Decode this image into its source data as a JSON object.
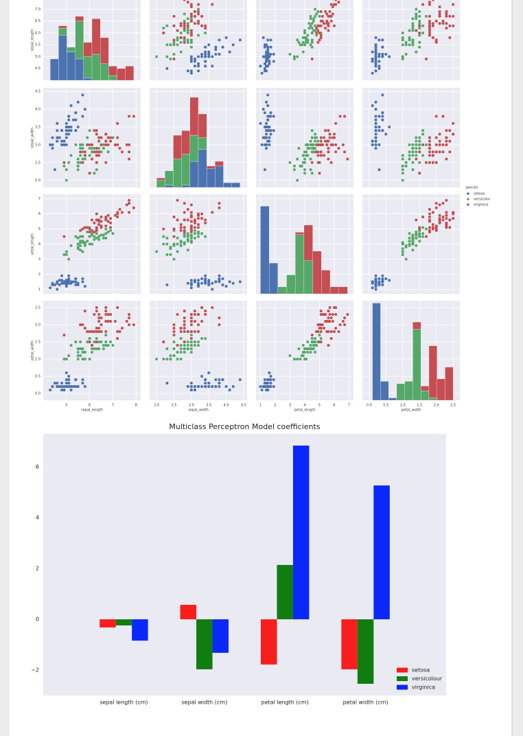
{
  "chart_data": [
    {
      "type": "pairplot",
      "legend_title": "species",
      "variables": [
        {
          "name": "sepal_length",
          "xlim": [
            4.0,
            8.2
          ],
          "xticks": [
            5,
            6,
            7,
            8
          ],
          "ylim": [
            4.0,
            8.2
          ],
          "yticks": [
            4.5,
            {
              "value": 5,
              "label": "5.0"
            },
            5.5,
            {
              "value": 6,
              "label": "6.0"
            },
            6.5,
            {
              "value": 7,
              "label": "7.0"
            }
          ],
          "bins": [
            4.3,
            4.66,
            5.02,
            5.38,
            5.74,
            6.1,
            6.46,
            6.82,
            7.18,
            7.54,
            7.9
          ],
          "hist_ylim": [
            0,
            42
          ]
        },
        {
          "name": "sepal_width",
          "xlim": [
            1.8,
            4.6
          ],
          "xticks": [
            {
              "value": 2,
              "label": "2.0"
            },
            2.5,
            {
              "value": 3,
              "label": "3.0"
            },
            3.5,
            {
              "value": 4,
              "label": "4.0"
            },
            4.5
          ],
          "ylim": [
            1.8,
            4.6
          ],
          "yticks": [
            {
              "value": 2,
              "label": "2.0"
            },
            2.5,
            {
              "value": 3,
              "label": "3.0"
            },
            3.5,
            {
              "value": 4,
              "label": "4.0"
            },
            4.5
          ],
          "bins": [
            2.0,
            2.24,
            2.48,
            2.72,
            2.96,
            3.2,
            3.44,
            3.68,
            3.92,
            4.16,
            4.4
          ],
          "hist_ylim": [
            0,
            42
          ]
        },
        {
          "name": "petal_length",
          "xlim": [
            0.7,
            7.3
          ],
          "xticks": [
            1,
            2,
            3,
            4,
            5,
            6,
            7
          ],
          "ylim": [
            0.7,
            7.3
          ],
          "yticks": [
            1,
            2,
            3,
            4,
            5,
            6,
            7
          ],
          "bins": [
            1.0,
            1.59,
            2.18,
            2.77,
            3.36,
            3.95,
            4.54,
            5.13,
            5.72,
            6.31,
            6.9
          ],
          "hist_ylim": [
            0,
            42
          ]
        },
        {
          "name": "petal_width",
          "xlim": [
            -0.2,
            2.7
          ],
          "xticks": [
            {
              "value": 0,
              "label": "0.0"
            },
            0.5,
            {
              "value": 1,
              "label": "1.0"
            },
            1.5,
            {
              "value": 2,
              "label": "2.0"
            },
            2.5
          ],
          "ylim": [
            -0.2,
            2.7
          ],
          "yticks": [
            {
              "value": 0,
              "label": "0.0"
            },
            0.5,
            {
              "value": 1,
              "label": "1.0"
            },
            1.5,
            {
              "value": 2,
              "label": "2.0"
            },
            2.5
          ],
          "bins": [
            0.1,
            0.34,
            0.58,
            0.82,
            1.06,
            1.3,
            1.54,
            1.78,
            2.02,
            2.26,
            2.5
          ],
          "hist_ylim": [
            0,
            42
          ]
        }
      ],
      "series": [
        {
          "name": "setosa",
          "color": "#4c72b0",
          "values": [
            [
              5.1,
              4.9,
              4.7,
              4.6,
              5.0,
              5.4,
              4.6,
              5.0,
              4.4,
              4.9,
              5.4,
              4.8,
              4.8,
              4.3,
              5.8,
              5.7,
              5.4,
              5.1,
              5.7,
              5.1,
              5.4,
              5.1,
              4.6,
              5.1,
              4.8,
              5.0,
              5.0,
              5.2,
              5.2,
              4.7,
              4.8,
              5.4,
              5.2,
              5.5,
              4.9,
              5.0,
              5.5,
              4.9,
              4.4,
              5.1,
              5.0,
              4.5,
              4.4,
              5.0,
              5.1,
              4.8,
              5.1,
              4.6,
              5.3,
              5.0
            ],
            [
              3.5,
              3.0,
              3.2,
              3.1,
              3.6,
              3.9,
              3.4,
              3.4,
              2.9,
              3.1,
              3.7,
              3.4,
              3.0,
              3.0,
              4.0,
              4.4,
              3.9,
              3.5,
              3.8,
              3.8,
              3.4,
              3.7,
              3.6,
              3.3,
              3.4,
              3.0,
              3.4,
              3.5,
              3.4,
              3.2,
              3.1,
              3.4,
              4.1,
              4.2,
              3.1,
              3.2,
              3.5,
              3.1,
              3.0,
              3.4,
              3.5,
              2.3,
              3.2,
              3.5,
              3.8,
              3.0,
              3.8,
              3.2,
              3.7,
              3.3
            ],
            [
              1.4,
              1.4,
              1.3,
              1.5,
              1.4,
              1.7,
              1.4,
              1.5,
              1.4,
              1.5,
              1.5,
              1.6,
              1.4,
              1.1,
              1.2,
              1.5,
              1.3,
              1.4,
              1.7,
              1.5,
              1.7,
              1.5,
              1.0,
              1.7,
              1.9,
              1.6,
              1.6,
              1.5,
              1.4,
              1.6,
              1.6,
              1.5,
              1.5,
              1.4,
              1.5,
              1.2,
              1.3,
              1.5,
              1.3,
              1.5,
              1.3,
              1.3,
              1.3,
              1.6,
              1.9,
              1.4,
              1.6,
              1.4,
              1.5,
              1.4
            ],
            [
              0.2,
              0.2,
              0.2,
              0.2,
              0.2,
              0.4,
              0.3,
              0.2,
              0.2,
              0.1,
              0.2,
              0.2,
              0.1,
              0.1,
              0.2,
              0.4,
              0.4,
              0.3,
              0.3,
              0.3,
              0.2,
              0.4,
              0.2,
              0.5,
              0.2,
              0.2,
              0.4,
              0.2,
              0.2,
              0.2,
              0.2,
              0.4,
              0.1,
              0.2,
              0.1,
              0.2,
              0.2,
              0.1,
              0.2,
              0.2,
              0.3,
              0.3,
              0.2,
              0.6,
              0.4,
              0.3,
              0.2,
              0.2,
              0.2,
              0.2
            ]
          ],
          "counts": [
            [
              9,
              19,
              12,
              9,
              1,
              0,
              0,
              0,
              0,
              0
            ],
            [
              0,
              1,
              0,
              1,
              11,
              16,
              8,
              9,
              2,
              2
            ],
            [
              37,
              13,
              0,
              0,
              0,
              0,
              0,
              0,
              0,
              0
            ],
            [
              41,
              8,
              1,
              0,
              0,
              0,
              0,
              0,
              0,
              0
            ]
          ]
        },
        {
          "name": "versicolor",
          "color": "#55a868",
          "values": [
            [
              7.0,
              6.4,
              6.9,
              5.5,
              6.5,
              5.7,
              6.3,
              4.9,
              6.6,
              5.2,
              5.0,
              5.9,
              6.0,
              6.1,
              5.6,
              6.7,
              5.6,
              5.8,
              6.2,
              5.6,
              5.9,
              6.1,
              6.3,
              6.1,
              6.4,
              6.6,
              6.8,
              6.7,
              6.0,
              5.7,
              5.5,
              5.5,
              5.8,
              6.0,
              5.4,
              6.0,
              6.7,
              6.3,
              5.6,
              5.5,
              5.5,
              6.1,
              5.8,
              5.0,
              5.6,
              5.7,
              5.7,
              6.2,
              5.1,
              5.7
            ],
            [
              3.2,
              3.2,
              3.1,
              2.3,
              2.8,
              2.8,
              3.3,
              2.4,
              2.9,
              2.7,
              2.0,
              3.0,
              2.2,
              2.9,
              2.9,
              3.1,
              3.0,
              2.7,
              2.2,
              2.5,
              3.2,
              2.8,
              2.5,
              2.8,
              2.9,
              3.0,
              2.8,
              3.0,
              2.9,
              2.6,
              2.4,
              2.4,
              2.7,
              2.7,
              3.0,
              3.4,
              3.1,
              2.3,
              3.0,
              2.5,
              2.6,
              3.0,
              2.6,
              2.3,
              2.7,
              3.0,
              2.9,
              2.9,
              2.5,
              2.8
            ],
            [
              4.7,
              4.5,
              4.9,
              4.0,
              4.6,
              4.5,
              4.7,
              3.3,
              4.6,
              3.9,
              3.5,
              4.2,
              4.0,
              4.7,
              3.6,
              4.4,
              4.5,
              4.1,
              4.5,
              3.9,
              4.8,
              4.0,
              4.9,
              4.7,
              4.3,
              4.4,
              4.8,
              5.0,
              4.5,
              3.5,
              3.8,
              3.7,
              3.9,
              5.1,
              4.5,
              4.5,
              4.7,
              4.4,
              4.1,
              4.0,
              4.4,
              4.6,
              4.0,
              3.3,
              4.2,
              4.2,
              4.2,
              4.3,
              3.0,
              4.1
            ],
            [
              1.4,
              1.5,
              1.5,
              1.3,
              1.5,
              1.3,
              1.6,
              1.0,
              1.3,
              1.4,
              1.0,
              1.5,
              1.0,
              1.4,
              1.3,
              1.4,
              1.5,
              1.0,
              1.5,
              1.1,
              1.8,
              1.3,
              1.5,
              1.2,
              1.3,
              1.4,
              1.4,
              1.7,
              1.5,
              1.0,
              1.1,
              1.0,
              1.2,
              1.6,
              1.5,
              1.6,
              1.5,
              1.3,
              1.3,
              1.3,
              1.2,
              1.4,
              1.2,
              1.0,
              1.3,
              1.2,
              1.3,
              1.3,
              1.1,
              1.3
            ]
          ],
          "counts": [
            [
              0,
              3,
              2,
              16,
              9,
              11,
              7,
              2,
              0,
              0
            ],
            [
              3,
              6,
              12,
              13,
              11,
              5,
              0,
              0,
              0,
              0
            ],
            [
              0,
              0,
              3,
              8,
              25,
              14,
              0,
              0,
              0,
              0
            ],
            [
              0,
              0,
              0,
              7,
              8,
              30,
              4,
              1,
              0,
              0
            ]
          ]
        },
        {
          "name": "virginica",
          "color": "#c44e52",
          "values": [
            [
              6.3,
              5.8,
              7.1,
              6.3,
              6.5,
              7.6,
              4.9,
              7.3,
              6.7,
              7.2,
              6.5,
              6.4,
              6.8,
              5.7,
              5.8,
              6.4,
              6.5,
              7.7,
              7.7,
              6.0,
              6.9,
              5.6,
              7.7,
              6.3,
              6.7,
              7.2,
              6.2,
              6.1,
              6.4,
              7.2,
              7.4,
              7.9,
              6.4,
              6.3,
              6.1,
              7.7,
              6.3,
              6.4,
              6.0,
              6.9,
              6.7,
              6.9,
              5.8,
              6.8,
              6.7,
              6.7,
              6.3,
              6.5,
              6.2,
              5.9
            ],
            [
              3.3,
              2.7,
              3.0,
              2.9,
              3.0,
              3.0,
              2.5,
              2.9,
              2.5,
              3.6,
              3.2,
              2.7,
              3.0,
              2.5,
              2.8,
              3.2,
              3.0,
              3.8,
              2.6,
              2.2,
              3.2,
              2.8,
              2.8,
              2.7,
              3.3,
              3.2,
              2.8,
              3.0,
              2.8,
              3.0,
              2.8,
              3.8,
              2.8,
              2.8,
              2.6,
              3.0,
              3.4,
              3.1,
              3.0,
              3.1,
              3.1,
              3.1,
              2.7,
              3.2,
              3.3,
              3.0,
              2.5,
              3.0,
              3.4,
              3.0
            ],
            [
              6.0,
              5.1,
              5.9,
              5.6,
              5.8,
              6.6,
              4.5,
              6.3,
              5.8,
              6.1,
              5.1,
              5.3,
              5.5,
              5.0,
              5.1,
              5.3,
              5.5,
              6.7,
              6.9,
              5.0,
              5.7,
              4.9,
              6.7,
              4.9,
              5.7,
              6.0,
              4.8,
              4.9,
              5.6,
              5.8,
              6.1,
              6.4,
              5.6,
              5.1,
              5.6,
              6.1,
              5.6,
              5.5,
              4.8,
              5.4,
              5.6,
              5.1,
              5.1,
              5.9,
              5.7,
              5.2,
              5.0,
              5.2,
              5.4,
              5.1
            ],
            [
              2.5,
              1.9,
              2.1,
              1.8,
              2.2,
              2.1,
              1.7,
              1.8,
              1.8,
              2.5,
              2.0,
              1.9,
              2.1,
              2.0,
              2.4,
              2.3,
              1.8,
              2.2,
              2.3,
              1.5,
              2.3,
              2.0,
              2.0,
              1.8,
              2.1,
              1.8,
              1.8,
              1.8,
              2.1,
              1.6,
              1.9,
              2.0,
              2.2,
              1.5,
              1.4,
              2.3,
              2.4,
              1.8,
              1.8,
              2.1,
              2.4,
              2.3,
              1.9,
              2.3,
              2.5,
              2.3,
              1.9,
              2.0,
              2.3,
              1.8
            ]
          ],
          "counts": [
            [
              0,
              1,
              0,
              2,
              6,
              15,
              11,
              4,
              5,
              6
            ],
            [
              1,
              0,
              10,
              10,
              16,
              10,
              1,
              2,
              0,
              0
            ],
            [
              0,
              0,
              0,
              0,
              1,
              15,
              18,
              10,
              3,
              3
            ],
            [
              0,
              0,
              0,
              0,
              0,
              3,
              2,
              22,
              9,
              14
            ]
          ]
        }
      ]
    },
    {
      "type": "bar",
      "title": "Multiclass Perceptron Model coefficients",
      "categories": [
        "sepal length (cm)",
        "sepal width (cm)",
        "petal length (cm)",
        "petal width (cm)"
      ],
      "series": [
        {
          "name": "setosa",
          "color": "#f81e1e",
          "values": [
            -0.32,
            0.57,
            -1.78,
            -1.97
          ]
        },
        {
          "name": "versicolour",
          "color": "#117d11",
          "values": [
            -0.24,
            -1.97,
            2.14,
            -2.54
          ]
        },
        {
          "name": "virginica",
          "color": "#0a28fa",
          "values": [
            -0.84,
            -1.32,
            6.84,
            5.27
          ]
        }
      ],
      "ylim": [
        -3.0,
        7.3
      ],
      "yticks": [
        {
          "value": -2,
          "label": "−2"
        },
        0,
        2,
        4,
        6
      ],
      "legend": "lower right"
    }
  ]
}
